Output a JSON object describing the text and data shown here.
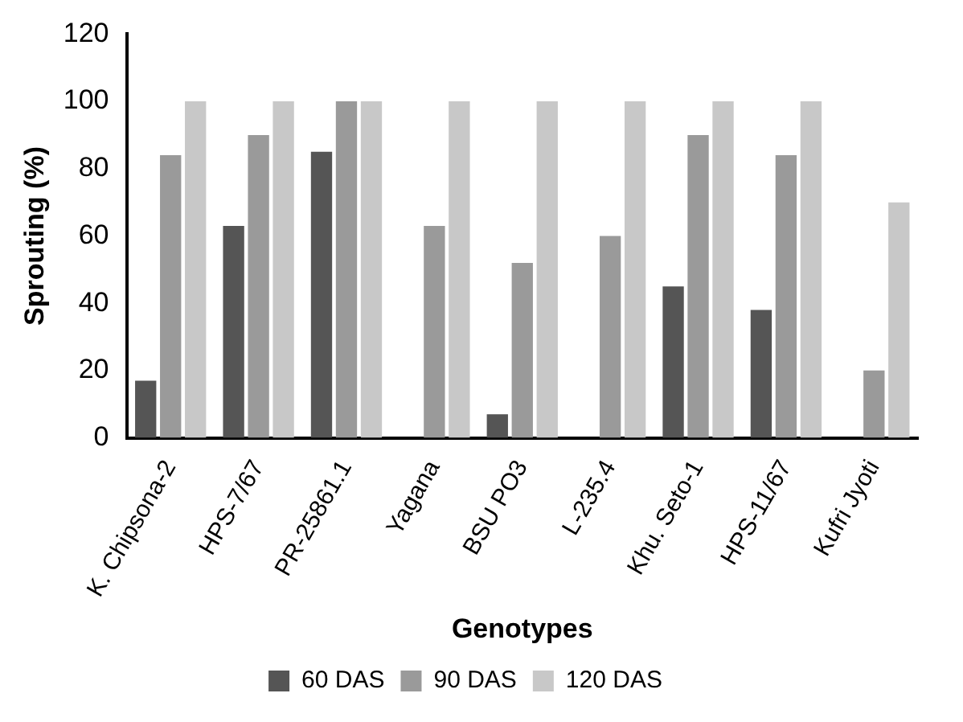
{
  "chart_data": {
    "type": "bar",
    "xlabel": "Genotypes",
    "ylabel": "Sprouting (%)",
    "categories": [
      "K. Chipsona-2",
      "HPS-7/67",
      "PR-25861.1",
      "Yagana",
      "BSU PO3",
      "L-235.4",
      "Khu. Seto-1",
      "HPS-11/67",
      "Kufri Jyoti"
    ],
    "series": [
      {
        "name": "60 DAS",
        "color": "#555555",
        "values": [
          17,
          63,
          85,
          null,
          7,
          null,
          45,
          38,
          null
        ]
      },
      {
        "name": "90 DAS",
        "color": "#9a9a9a",
        "values": [
          84,
          90,
          100,
          63,
          52,
          60,
          90,
          84,
          20
        ]
      },
      {
        "name": "120 DAS",
        "color": "#c8c8c8",
        "values": [
          100,
          100,
          100,
          100,
          100,
          100,
          100,
          100,
          70
        ]
      }
    ],
    "ylim": [
      0,
      120
    ],
    "yticks": [
      0,
      20,
      40,
      60,
      80,
      100,
      120
    ],
    "grid": false,
    "legend": "bottom"
  }
}
